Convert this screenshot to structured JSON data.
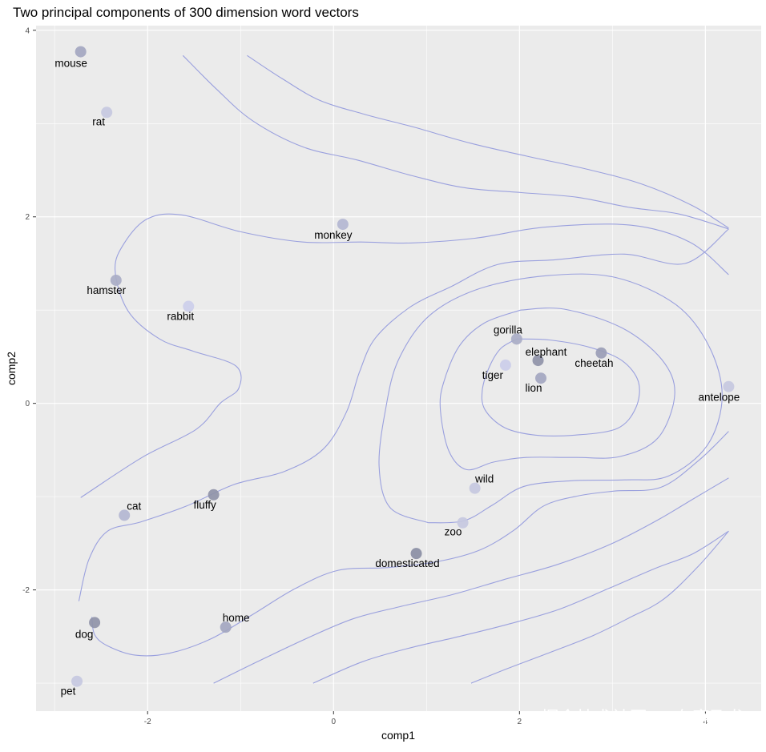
{
  "chart_data": {
    "type": "scatter",
    "title": "Two principal components of 300 dimension word vectors",
    "xlabel": "comp1",
    "ylabel": "comp2",
    "xlim": [
      -3.2,
      4.6
    ],
    "ylim": [
      -3.3,
      4.05
    ],
    "x_ticks": [
      -2,
      0,
      2,
      4
    ],
    "y_ticks": [
      -2,
      0,
      2,
      4
    ],
    "x_tick_labels": [
      "-2",
      "0",
      "2",
      "4"
    ],
    "y_tick_labels": [
      "-2",
      "0",
      "2",
      "4"
    ],
    "grid": true,
    "legend": "none",
    "colors": {
      "panel": "#ebebeb",
      "grid": "#ffffff",
      "contour": "#9aa0de",
      "label": "#000000"
    },
    "points": [
      {
        "label": "mouse",
        "x": -2.72,
        "y": 3.77,
        "shade": "#a3a6c0"
      },
      {
        "label": "rat",
        "x": -2.44,
        "y": 3.12,
        "shade": "#c6c8df"
      },
      {
        "label": "monkey",
        "x": 0.1,
        "y": 1.92,
        "shade": "#b3b6d1"
      },
      {
        "label": "hamster",
        "x": -2.34,
        "y": 1.32,
        "shade": "#a9acc6"
      },
      {
        "label": "rabbit",
        "x": -1.56,
        "y": 1.04,
        "shade": "#ccceea"
      },
      {
        "label": "gorilla",
        "x": 1.97,
        "y": 0.69,
        "shade": "#a9acc6"
      },
      {
        "label": "elephant",
        "x": 2.2,
        "y": 0.46,
        "shade": "#8f93a8"
      },
      {
        "label": "cheetah",
        "x": 2.88,
        "y": 0.54,
        "shade": "#9a9db6"
      },
      {
        "label": "tiger",
        "x": 1.85,
        "y": 0.41,
        "shade": "#cbcde9"
      },
      {
        "label": "lion",
        "x": 2.23,
        "y": 0.27,
        "shade": "#a3a6c0"
      },
      {
        "label": "antelope",
        "x": 4.25,
        "y": 0.18,
        "shade": "#c6c8df"
      },
      {
        "label": "wild",
        "x": 1.52,
        "y": -0.91,
        "shade": "#c6c8df"
      },
      {
        "label": "cat",
        "x": -2.25,
        "y": -1.2,
        "shade": "#b3b6d1"
      },
      {
        "label": "fluffy",
        "x": -1.29,
        "y": -0.98,
        "shade": "#8f93a8"
      },
      {
        "label": "zoo",
        "x": 1.39,
        "y": -1.28,
        "shade": "#c6c8df"
      },
      {
        "label": "domesticated",
        "x": 0.89,
        "y": -1.61,
        "shade": "#8a8ea4"
      },
      {
        "label": "home",
        "x": -1.16,
        "y": -2.4,
        "shade": "#a3a6c0"
      },
      {
        "label": "dog",
        "x": -2.57,
        "y": -2.35,
        "shade": "#8f93a8"
      },
      {
        "label": "pet",
        "x": -2.76,
        "y": -2.98,
        "shade": "#c6c8df"
      }
    ],
    "contours": [
      [
        [
          1.97,
          0.69
        ],
        [
          2.32,
          0.68
        ],
        [
          2.76,
          0.6
        ],
        [
          3.1,
          0.46
        ],
        [
          3.28,
          0.23
        ],
        [
          3.25,
          -0.05
        ],
        [
          3.05,
          -0.27
        ],
        [
          2.6,
          -0.34
        ],
        [
          2.17,
          -0.34
        ],
        [
          1.84,
          -0.26
        ],
        [
          1.63,
          -0.07
        ],
        [
          1.6,
          0.14
        ],
        [
          1.68,
          0.4
        ],
        [
          1.8,
          0.59
        ],
        [
          1.97,
          0.69
        ]
      ],
      [
        [
          2.01,
          1.0
        ],
        [
          2.48,
          1.01
        ],
        [
          3.1,
          0.81
        ],
        [
          3.53,
          0.47
        ],
        [
          3.67,
          0.1
        ],
        [
          3.49,
          -0.37
        ],
        [
          3.08,
          -0.57
        ],
        [
          2.6,
          -0.58
        ],
        [
          2.07,
          -0.58
        ],
        [
          1.72,
          -0.63
        ],
        [
          1.43,
          -0.71
        ],
        [
          1.24,
          -0.51
        ],
        [
          1.15,
          -0.08
        ],
        [
          1.18,
          0.21
        ],
        [
          1.35,
          0.61
        ],
        [
          1.62,
          0.86
        ],
        [
          2.01,
          1.0
        ]
      ],
      [
        [
          1.02,
          -1.28
        ],
        [
          1.4,
          -1.26
        ],
        [
          1.71,
          -1.09
        ],
        [
          2.05,
          -0.89
        ],
        [
          2.56,
          -0.83
        ],
        [
          3.13,
          -0.82
        ],
        [
          3.6,
          -0.78
        ],
        [
          4.02,
          -0.45
        ],
        [
          4.18,
          0.07
        ],
        [
          4.04,
          0.61
        ],
        [
          3.68,
          1.06
        ],
        [
          3.03,
          1.35
        ],
        [
          2.31,
          1.37
        ],
        [
          1.57,
          1.23
        ],
        [
          1.03,
          0.94
        ],
        [
          0.7,
          0.47
        ],
        [
          0.56,
          -0.06
        ],
        [
          0.49,
          -0.67
        ],
        [
          0.61,
          -1.12
        ],
        [
          1.02,
          -1.28
        ]
      ],
      [
        [
          -2.72,
          -1.01
        ],
        [
          -2.06,
          -0.58
        ],
        [
          -1.48,
          -0.28
        ],
        [
          -1.22,
          0.0
        ],
        [
          -1.02,
          0.16
        ],
        [
          -1.05,
          0.4
        ],
        [
          -1.51,
          0.56
        ],
        [
          -1.87,
          0.69
        ],
        [
          -2.21,
          0.99
        ],
        [
          -2.35,
          1.43
        ],
        [
          -2.25,
          1.72
        ],
        [
          -2.0,
          1.98
        ],
        [
          -1.63,
          2.02
        ],
        [
          -1.0,
          1.84
        ],
        [
          -0.33,
          1.73
        ],
        [
          0.3,
          1.73
        ],
        [
          0.83,
          1.72
        ],
        [
          1.52,
          1.77
        ],
        [
          2.28,
          1.89
        ],
        [
          3.2,
          1.91
        ],
        [
          3.83,
          1.73
        ],
        [
          4.25,
          1.38
        ]
      ],
      [
        [
          -2.74,
          -2.12
        ],
        [
          -2.63,
          -1.67
        ],
        [
          -2.43,
          -1.37
        ],
        [
          -2.07,
          -1.27
        ],
        [
          -1.58,
          -1.1
        ],
        [
          -1.07,
          -0.87
        ],
        [
          -0.53,
          -0.73
        ],
        [
          -0.11,
          -0.49
        ],
        [
          0.14,
          -0.09
        ],
        [
          0.28,
          0.34
        ],
        [
          0.45,
          0.7
        ],
        [
          0.82,
          1.03
        ],
        [
          1.26,
          1.25
        ],
        [
          1.77,
          1.49
        ],
        [
          2.39,
          1.54
        ],
        [
          3.13,
          1.6
        ],
        [
          3.78,
          1.5
        ],
        [
          4.25,
          1.87
        ]
      ],
      [
        [
          -2.6,
          -2.29
        ],
        [
          -2.57,
          -2.48
        ],
        [
          -2.43,
          -2.6
        ],
        [
          -2.13,
          -2.7
        ],
        [
          -1.77,
          -2.68
        ],
        [
          -1.33,
          -2.53
        ],
        [
          -0.88,
          -2.27
        ],
        [
          -0.42,
          -1.99
        ],
        [
          0.05,
          -1.79
        ],
        [
          0.6,
          -1.76
        ],
        [
          1.15,
          -1.69
        ],
        [
          1.58,
          -1.57
        ],
        [
          1.94,
          -1.36
        ],
        [
          2.26,
          -1.1
        ],
        [
          2.64,
          -0.99
        ],
        [
          3.03,
          -0.94
        ],
        [
          3.52,
          -0.9
        ],
        [
          3.93,
          -0.61
        ],
        [
          4.25,
          -0.3
        ]
      ],
      [
        [
          -1.29,
          -3.0
        ],
        [
          -0.82,
          -2.77
        ],
        [
          -0.29,
          -2.52
        ],
        [
          0.21,
          -2.31
        ],
        [
          0.71,
          -2.18
        ],
        [
          1.28,
          -2.05
        ],
        [
          1.83,
          -1.89
        ],
        [
          2.4,
          -1.73
        ],
        [
          2.98,
          -1.51
        ],
        [
          3.47,
          -1.26
        ],
        [
          3.86,
          -1.03
        ],
        [
          4.25,
          -0.8
        ]
      ],
      [
        [
          -0.22,
          -3.0
        ],
        [
          0.31,
          -2.77
        ],
        [
          0.83,
          -2.62
        ],
        [
          1.35,
          -2.5
        ],
        [
          1.87,
          -2.37
        ],
        [
          2.42,
          -2.21
        ],
        [
          2.97,
          -1.98
        ],
        [
          3.46,
          -1.77
        ],
        [
          3.87,
          -1.61
        ],
        [
          4.25,
          -1.37
        ]
      ],
      [
        [
          -0.93,
          3.73
        ],
        [
          -0.55,
          3.48
        ],
        [
          -0.15,
          3.25
        ],
        [
          0.33,
          3.1
        ],
        [
          0.87,
          2.96
        ],
        [
          1.47,
          2.79
        ],
        [
          2.08,
          2.65
        ],
        [
          2.73,
          2.51
        ],
        [
          3.32,
          2.35
        ],
        [
          3.86,
          2.12
        ],
        [
          4.25,
          1.88
        ]
      ],
      [
        [
          -1.62,
          3.73
        ],
        [
          -1.26,
          3.37
        ],
        [
          -0.87,
          3.03
        ],
        [
          -0.33,
          2.75
        ],
        [
          0.25,
          2.61
        ],
        [
          0.85,
          2.44
        ],
        [
          1.42,
          2.31
        ],
        [
          2.02,
          2.26
        ],
        [
          2.62,
          2.21
        ],
        [
          3.19,
          2.1
        ],
        [
          3.72,
          2.03
        ],
        [
          4.25,
          1.87
        ]
      ],
      [
        [
          1.48,
          -3.0
        ],
        [
          1.88,
          -2.84
        ],
        [
          2.33,
          -2.67
        ],
        [
          2.79,
          -2.49
        ],
        [
          3.18,
          -2.3
        ],
        [
          3.55,
          -2.1
        ],
        [
          3.93,
          -1.74
        ],
        [
          4.25,
          -1.37
        ]
      ]
    ],
    "watermark": "掘金技术社区 @ 布客飞龙"
  }
}
